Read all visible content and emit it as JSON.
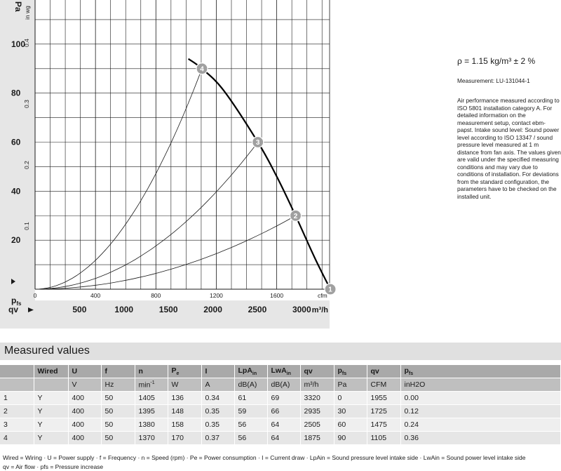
{
  "chart_data": {
    "type": "line",
    "y_axis_left_label": "Pa",
    "y_axis_left_unit_marker": "p",
    "y_axis_left_unit_sub": "fs",
    "y_axis_inner_label": "in wg",
    "x_axis_top_unit": "cfm",
    "x_axis_bottom_label": "qv",
    "x_axis_bottom_unit": "m³/h",
    "y_ticks_pa": [
      20,
      40,
      60,
      80,
      100
    ],
    "y_ticks_inwg": [
      0.1,
      0.2,
      0.3,
      0.4
    ],
    "x_ticks_cfm": [
      0,
      400,
      800,
      1200,
      1600
    ],
    "x_ticks_m3h": [
      500,
      1000,
      1500,
      2000,
      2500,
      3000
    ],
    "xlim_cfm": [
      0,
      1950
    ],
    "ylim_pa": [
      0,
      118
    ],
    "grid": true,
    "fan_curve": {
      "name": "fan curve",
      "x_cfm": [
        1015,
        1105,
        1250,
        1475,
        1600,
        1725,
        1850,
        1955
      ],
      "y_pa": [
        94,
        90,
        81,
        60,
        46,
        30,
        13,
        0
      ]
    },
    "operating_points": [
      {
        "label": "1",
        "x_cfm": 1955,
        "y_pa": 0
      },
      {
        "label": "2",
        "x_cfm": 1725,
        "y_pa": 30
      },
      {
        "label": "3",
        "x_cfm": 1475,
        "y_pa": 60
      },
      {
        "label": "4",
        "x_cfm": 1105,
        "y_pa": 90
      }
    ],
    "system_curves": [
      {
        "to_point": "2",
        "x_cfm": 1725,
        "y_pa": 30
      },
      {
        "to_point": "3",
        "x_cfm": 1475,
        "y_pa": 60
      },
      {
        "to_point": "4",
        "x_cfm": 1105,
        "y_pa": 90
      }
    ]
  },
  "side": {
    "density": "ρ = 1.15 kg/m³ ± 2 %",
    "measurement": "Measurement: LU-131044-1",
    "note": "Air performance measured according to ISO 5801 installation category A. For detailed information on the measurement setup, contact ebm-papst. Intake sound level: Sound power level according to ISO 13347 / sound pressure level measured at 1 m distance from fan axis. The values given are valid under the specified measuring conditions and may vary due to conditions of installation. For deviations from the standard configuration, the parameters have to be checked on the installed unit."
  },
  "table": {
    "title": "Measured values",
    "headers": [
      "",
      "Wired",
      "U",
      "f",
      "n",
      "P",
      "I",
      "LpA",
      "LwA",
      "qv",
      "p",
      "qv",
      "p"
    ],
    "header_subs": [
      "",
      "",
      "",
      "",
      "",
      "e",
      "",
      "in",
      "in",
      "",
      "fs",
      "",
      "fs"
    ],
    "units": [
      "",
      "",
      "V",
      "Hz",
      "min-1",
      "W",
      "A",
      "dB(A)",
      "dB(A)",
      "m³/h",
      "Pa",
      "CFM",
      "inH2O"
    ],
    "rows": [
      [
        "1",
        "Y",
        "400",
        "50",
        "1405",
        "136",
        "0.34",
        "61",
        "69",
        "3320",
        "0",
        "1955",
        "0.00"
      ],
      [
        "2",
        "Y",
        "400",
        "50",
        "1395",
        "148",
        "0.35",
        "59",
        "66",
        "2935",
        "30",
        "1725",
        "0.12"
      ],
      [
        "3",
        "Y",
        "400",
        "50",
        "1380",
        "158",
        "0.35",
        "56",
        "64",
        "2505",
        "60",
        "1475",
        "0.24"
      ],
      [
        "4",
        "Y",
        "400",
        "50",
        "1370",
        "170",
        "0.37",
        "56",
        "64",
        "1875",
        "90",
        "1105",
        "0.36"
      ]
    ]
  },
  "legend": {
    "line1": "Wired = Wiring · U = Power supply · f = Frequency · n = Speed (rpm) · Pe = Power consumption · I = Current draw · LpAin = Sound pressure level intake side · LwAin = Sound power level intake side",
    "line2": "qv = Air flow · pfs = Pressure increase"
  },
  "colors": {
    "axis_band": "#e6e6e6",
    "grid": "#1a1a1a",
    "point_fill": "#a0a0a0",
    "table_header": "#a9a9a9",
    "table_units": "#bfbfbf"
  }
}
